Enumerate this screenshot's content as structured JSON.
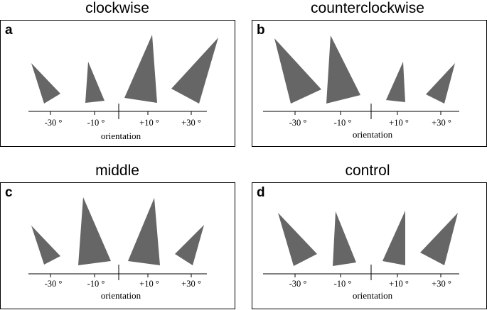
{
  "panels": [
    {
      "id": "a",
      "letter": "a",
      "title": "clockwise"
    },
    {
      "id": "b",
      "letter": "b",
      "title": "counterclockwise"
    },
    {
      "id": "c",
      "letter": "c",
      "title": "middle"
    },
    {
      "id": "d",
      "letter": "d",
      "title": "control"
    }
  ],
  "axis": {
    "label": "orientation",
    "ticks": [
      "-30 °",
      "-10 °",
      "+10 °",
      "+30 °"
    ]
  },
  "colors": {
    "triangle": "#666666",
    "line": "#000000"
  }
}
